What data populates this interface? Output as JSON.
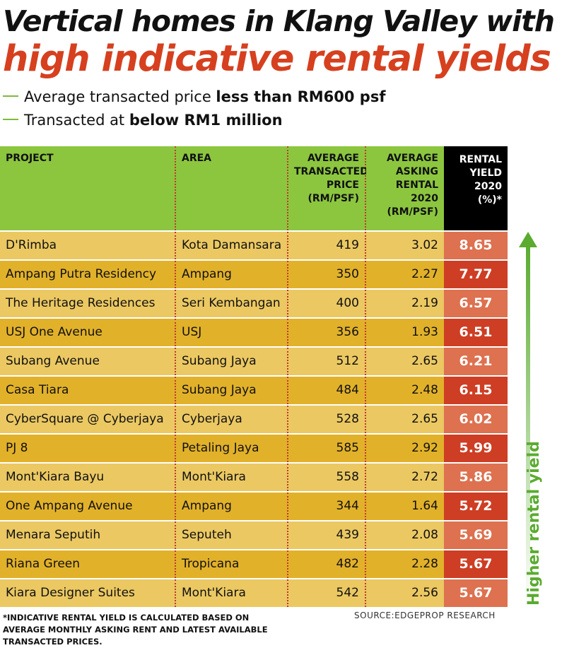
{
  "title_line1": "Vertical homes in Klang Valley with",
  "title_line2": "high indicative rental yields",
  "criteria": [
    {
      "text": "Average transacted price ",
      "bold": "less than RM600 psf"
    },
    {
      "text": "Transacted at ",
      "bold": "below RM1 million"
    }
  ],
  "colors": {
    "header_green": "#8cc63f",
    "row_light": "#ebc862",
    "row_dark": "#e2b12a",
    "yield_light": "#dd7150",
    "yield_dark": "#cd3e24",
    "arrow_green": "#5aab2f",
    "title_red": "#d6401f"
  },
  "chart_data": {
    "type": "table",
    "columns": [
      "PROJECT",
      "AREA",
      "AVERAGE TRANSACTED PRICE (RM/PSF)",
      "AVERAGE ASKING RENTAL 2020 (RM/PSF)",
      "RENTAL YIELD 2020 (%)*"
    ],
    "rows": [
      [
        "D'Rimba",
        "Kota Damansara",
        "419",
        "3.02",
        "8.65"
      ],
      [
        "Ampang Putra Residency",
        "Ampang",
        "350",
        "2.27",
        "7.77"
      ],
      [
        "The Heritage Residences",
        "Seri Kembangan",
        "400",
        "2.19",
        "6.57"
      ],
      [
        "USJ One Avenue",
        "USJ",
        "356",
        "1.93",
        "6.51"
      ],
      [
        "Subang Avenue",
        "Subang Jaya",
        "512",
        "2.65",
        "6.21"
      ],
      [
        "Casa Tiara",
        "Subang Jaya",
        "484",
        "2.48",
        "6.15"
      ],
      [
        "CyberSquare @ Cyberjaya",
        "Cyberjaya",
        "528",
        "2.65",
        "6.02"
      ],
      [
        "PJ 8",
        "Petaling Jaya",
        "585",
        "2.92",
        "5.99"
      ],
      [
        "Mont'Kiara Bayu",
        "Mont'Kiara",
        "558",
        "2.72",
        "5.86"
      ],
      [
        "One Ampang Avenue",
        "Ampang",
        "344",
        "1.64",
        "5.72"
      ],
      [
        "Menara Seputih",
        "Seputeh",
        "439",
        "2.08",
        "5.69"
      ],
      [
        "Riana Green",
        "Tropicana",
        "482",
        "2.28",
        "5.67"
      ],
      [
        "Kiara Designer Suites",
        "Mont'Kiara",
        "542",
        "2.56",
        "5.67"
      ]
    ]
  },
  "header_lines": {
    "project": [
      "PROJECT"
    ],
    "area": [
      "AREA"
    ],
    "price": [
      "AVERAGE",
      "TRANSACTED",
      "PRICE",
      "(RM/PSF)"
    ],
    "rental": [
      "AVERAGE",
      "ASKING",
      "RENTAL",
      "2020",
      "(RM/PSF)"
    ],
    "yield": [
      "RENTAL",
      "YIELD",
      "2020 (%)*"
    ]
  },
  "arrow_label": "Higher rental yield",
  "footnote": "*INDICATIVE RENTAL YIELD IS CALCULATED BASED ON\nAVERAGE MONTHLY ASKING RENT AND LATEST AVAILABLE\nTRANSACTED PRICES.",
  "source": "SOURCE:EDGEPROP RESEARCH"
}
